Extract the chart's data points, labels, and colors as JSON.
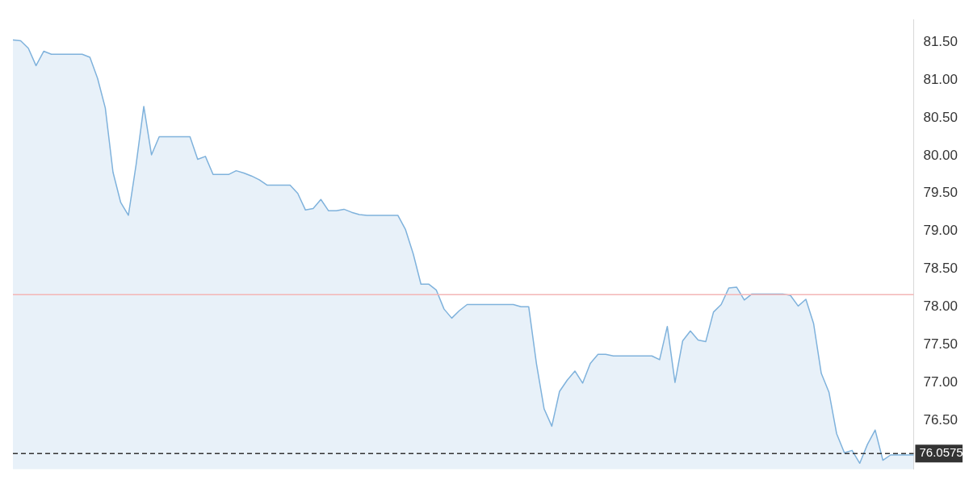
{
  "chart_data": {
    "type": "area",
    "categories": [
      null,
      null,
      null,
      null,
      null,
      null,
      null,
      null,
      null,
      null,
      null,
      null,
      null,
      null,
      null,
      null,
      null,
      null,
      null,
      null,
      null,
      null,
      null,
      null,
      null,
      null,
      null,
      null,
      null,
      null,
      null,
      null,
      null,
      null,
      null,
      null,
      null,
      null,
      null,
      null,
      null,
      null,
      null,
      null,
      null,
      null,
      null,
      null,
      null,
      null,
      null,
      null,
      null,
      null,
      null,
      null,
      null,
      null,
      null,
      null,
      null,
      null,
      null,
      null,
      null,
      null,
      null,
      null,
      null,
      null,
      null,
      null,
      null,
      null,
      null,
      null,
      null,
      null,
      null,
      null,
      null,
      null,
      null,
      null,
      null,
      null,
      null,
      null,
      null,
      null,
      null,
      null,
      null,
      null,
      null,
      null,
      null,
      null,
      null,
      null,
      null,
      null,
      null,
      null,
      null,
      null,
      null,
      null,
      null,
      null,
      null,
      null,
      null,
      null,
      null,
      null,
      null,
      null
    ],
    "series": [
      {
        "color": "#7fb2dc",
        "values": [
          81.53,
          81.52,
          81.42,
          81.19,
          81.38,
          81.34,
          81.34,
          81.34,
          81.34,
          81.34,
          81.3,
          81.02,
          80.63,
          79.78,
          79.38,
          79.21,
          79.88,
          80.65,
          80.01,
          80.25,
          80.25,
          80.25,
          80.25,
          80.25,
          79.95,
          79.99,
          79.75,
          79.75,
          79.75,
          79.8,
          79.77,
          79.73,
          79.68,
          79.61,
          79.61,
          79.61,
          79.61,
          79.5,
          79.28,
          79.3,
          79.42,
          79.27,
          79.27,
          79.29,
          79.25,
          79.22,
          79.21,
          79.21,
          79.21,
          79.21,
          79.21,
          79.02,
          78.7,
          78.3,
          78.3,
          78.22,
          77.97,
          77.85,
          77.95,
          78.03,
          78.03,
          78.03,
          78.03,
          78.03,
          78.03,
          78.03,
          78.0,
          78.0,
          77.25,
          76.65,
          76.42,
          76.88,
          77.03,
          77.15,
          76.99,
          77.25,
          77.37,
          77.37,
          77.35,
          77.35,
          77.35,
          77.35,
          77.35,
          77.35,
          77.3,
          77.74,
          77.0,
          77.55,
          77.68,
          77.56,
          77.54,
          77.93,
          78.03,
          78.25,
          78.26,
          78.09,
          78.17,
          78.17,
          78.17,
          78.17,
          78.17,
          78.15,
          78.01,
          78.1,
          77.78,
          77.12,
          76.87,
          76.32,
          76.07,
          76.1,
          75.93,
          76.18,
          76.37,
          75.97,
          76.04,
          76.04,
          76.04,
          76.04
        ]
      }
    ],
    "ylim": [
      75.85,
      81.8
    ],
    "yticks": [
      {
        "value": 76.5,
        "label": "76.50"
      },
      {
        "value": 77,
        "label": "77.00"
      },
      {
        "value": 77.5,
        "label": "77.50"
      },
      {
        "value": 78,
        "label": "78.00"
      },
      {
        "value": 78.5,
        "label": "78.50"
      },
      {
        "value": 79,
        "label": "79.00"
      },
      {
        "value": 79.5,
        "label": "79.50"
      },
      {
        "value": 80,
        "label": "80.00"
      },
      {
        "value": 80.5,
        "label": "80.50"
      },
      {
        "value": 81,
        "label": "81.00"
      },
      {
        "value": 81.5,
        "label": "81.50"
      }
    ],
    "tick_labels": "y",
    "grid": false,
    "legend": false,
    "marker": "none",
    "ref_lines": [
      {
        "axis": "y",
        "value": 78.16,
        "color": "#f4b6b6",
        "line_style": "solid"
      },
      {
        "axis": "y",
        "value": 76.0575,
        "label": "76.0575",
        "color": "#333333",
        "line_style": "dashed"
      }
    ]
  }
}
